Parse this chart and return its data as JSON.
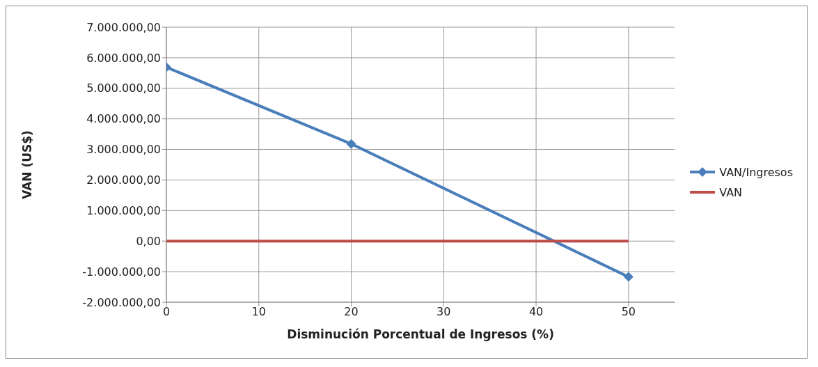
{
  "chart_data": {
    "type": "line",
    "xlabel": "Disminución Porcentual de Ingresos (%)",
    "ylabel": "VAN (US$)",
    "series": [
      {
        "name": "VAN/Ingresos",
        "color": "#4a7ebb",
        "x": [
          0,
          20,
          50
        ],
        "values": [
          5690000,
          3180000,
          -1170000
        ],
        "marker": "diamond"
      },
      {
        "name": "VAN",
        "color": "#be4b48",
        "x": [
          0,
          50
        ],
        "values": [
          0,
          0
        ],
        "marker": "none"
      }
    ],
    "xlim": [
      0,
      55
    ],
    "xticks": [
      0,
      10,
      20,
      30,
      40,
      50
    ],
    "ylim": [
      -2000000,
      7000000
    ],
    "yticks": [
      {
        "value": -2000000,
        "label": "-2.000.000,00"
      },
      {
        "value": -1000000,
        "label": "-1.000.000,00"
      },
      {
        "value": 0,
        "label": "0,00"
      },
      {
        "value": 1000000,
        "label": "1.000.000,00"
      },
      {
        "value": 2000000,
        "label": "2.000.000,00"
      },
      {
        "value": 3000000,
        "label": "3.000.000,00"
      },
      {
        "value": 4000000,
        "label": "4.000.000,00"
      },
      {
        "value": 5000000,
        "label": "5.000.000,00"
      },
      {
        "value": 6000000,
        "label": "6.000.000,00"
      },
      {
        "value": 7000000,
        "label": "7.000.000,00"
      }
    ],
    "grid": true,
    "legend": "right",
    "line_style": "solid"
  }
}
